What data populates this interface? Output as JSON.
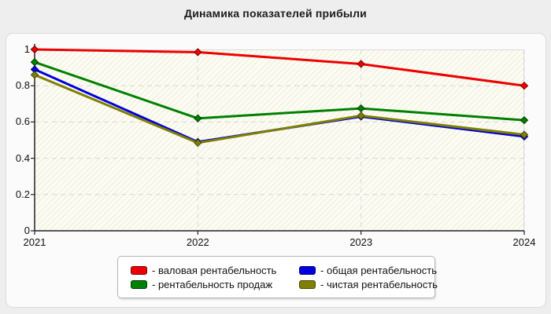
{
  "chart_data": {
    "type": "line",
    "title": "Динамика показателей прибыли",
    "x": [
      2021,
      2022,
      2023,
      2024
    ],
    "xlabel": "",
    "ylabel": "",
    "ylim": [
      0,
      1
    ],
    "yticks": [
      0,
      0.2,
      0.4,
      0.6,
      0.8,
      1
    ],
    "ytick_labels": [
      "0",
      "0.2",
      "0.4",
      "0.6",
      "0.8",
      "1"
    ],
    "grid": "dashed, horizontal at each ytick and vertical at each year",
    "marker": "diamond",
    "legend_position": "bottom-center",
    "series": [
      {
        "name": "валовая рентабельность",
        "color": "#ee0000",
        "border": "#7a0000",
        "values": [
          1.0,
          0.985,
          0.92,
          0.8
        ]
      },
      {
        "name": "рентабельность продаж",
        "color": "#008000",
        "border": "#003d00",
        "values": [
          0.93,
          0.62,
          0.675,
          0.61
        ]
      },
      {
        "name": "общая рентабельность",
        "color": "#0000dd",
        "border": "#000080",
        "values": [
          0.89,
          0.49,
          0.63,
          0.52
        ]
      },
      {
        "name": "чистая рентабельность",
        "color": "#7f7f00",
        "border": "#4a4a00",
        "values": [
          0.86,
          0.485,
          0.635,
          0.53
        ]
      }
    ]
  },
  "legend": {
    "items": [
      {
        "label": "- валовая рентабельность",
        "color": "#ee0000",
        "border": "#7a0000"
      },
      {
        "label": "- общая рентабельность",
        "color": "#0000dd",
        "border": "#000080"
      },
      {
        "label": "- рентабельность продаж",
        "color": "#008000",
        "border": "#003d00"
      },
      {
        "label": "- чистая рентабельность",
        "color": "#7f7f00",
        "border": "#4a4a00"
      }
    ]
  }
}
